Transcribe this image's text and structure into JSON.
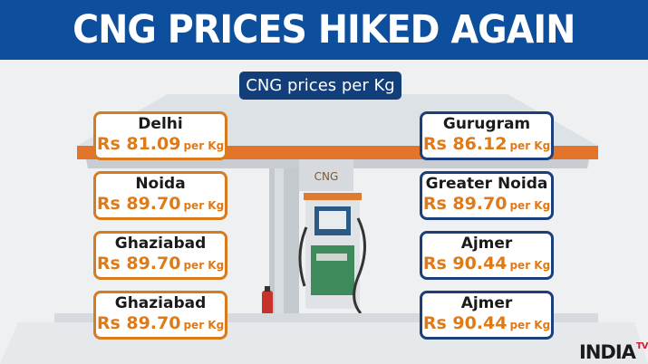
{
  "headline": "CNG PRICES HIKED AGAIN",
  "subtitle": "CNG prices per Kg",
  "canopy_sign": "CNG",
  "left_cards": [
    {
      "city": "Delhi",
      "price": "Rs 81.09",
      "unit": "per Kg"
    },
    {
      "city": "Noida",
      "price": "Rs 89.70",
      "unit": "per Kg"
    },
    {
      "city": "Ghaziabad",
      "price": "Rs 89.70",
      "unit": "per Kg"
    },
    {
      "city": "Ghaziabad",
      "price": "Rs 89.70",
      "unit": "per Kg"
    }
  ],
  "right_cards": [
    {
      "city": "Gurugram",
      "price": "Rs 86.12",
      "unit": "per Kg"
    },
    {
      "city": "Greater Noida",
      "price": "Rs 89.70",
      "unit": "per Kg"
    },
    {
      "city": "Ajmer",
      "price": "Rs 90.44",
      "unit": "per Kg"
    },
    {
      "city": "Ajmer",
      "price": "Rs 90.44",
      "unit": "per Kg"
    }
  ],
  "logo": {
    "main": "INDIA",
    "suffix": "TV"
  },
  "colors": {
    "header_blue": "#0d4f9c",
    "orange": "#e07a18",
    "navy": "#1c3f7a"
  }
}
